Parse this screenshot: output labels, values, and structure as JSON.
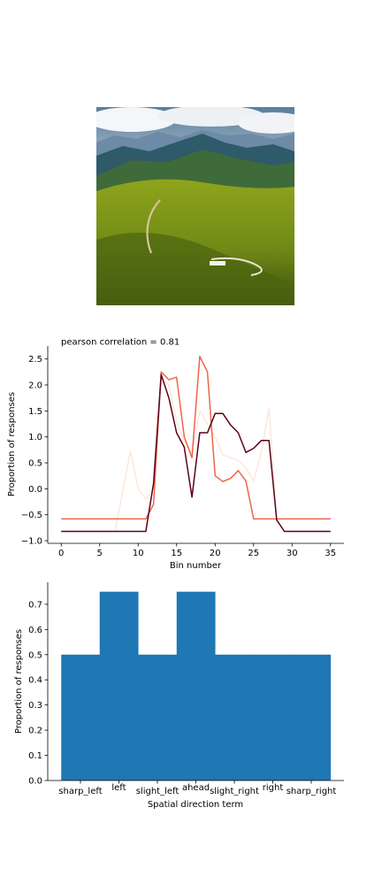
{
  "chart_data": [
    {
      "type": "line",
      "title": "pearson correlation = 0.81",
      "xlabel": "Bin number",
      "ylabel": "Proportion of responses",
      "xlim": [
        -1.75,
        36.75
      ],
      "ylim": [
        -1.05,
        2.75
      ],
      "xticks": [
        0,
        5,
        10,
        15,
        20,
        25,
        30,
        35
      ],
      "yticks": [
        -1.0,
        -0.5,
        0.0,
        0.5,
        1.0,
        1.5,
        2.0,
        2.5
      ],
      "xtick_labels": [
        "0",
        "5",
        "10",
        "15",
        "20",
        "25",
        "30",
        "35"
      ],
      "ytick_labels": [
        "−1.0",
        "−0.5",
        "0.0",
        "0.5",
        "1.0",
        "1.5",
        "2.0",
        "2.5"
      ],
      "grid": false,
      "x": [
        0,
        1,
        2,
        3,
        4,
        5,
        6,
        7,
        8,
        9,
        10,
        11,
        12,
        13,
        14,
        15,
        16,
        17,
        18,
        19,
        20,
        21,
        22,
        23,
        24,
        25,
        26,
        27,
        28,
        29,
        30,
        31,
        32,
        33,
        34,
        35
      ],
      "series": [
        {
          "color": "#fde7dc",
          "values": [
            -0.82,
            -0.82,
            -0.82,
            -0.82,
            -0.82,
            -0.82,
            -0.82,
            -0.82,
            -0.05,
            0.72,
            0.0,
            -0.2,
            0.0,
            2.1,
            2.0,
            1.3,
            0.9,
            0.7,
            1.5,
            1.25,
            1.0,
            0.65,
            0.6,
            0.55,
            0.4,
            0.15,
            0.7,
            1.55,
            -0.6,
            -0.82,
            -0.82,
            -0.82,
            -0.82,
            -0.82,
            -0.82,
            -0.82
          ]
        },
        {
          "color": "#ee6548",
          "values": [
            -0.58,
            -0.58,
            -0.58,
            -0.58,
            -0.58,
            -0.58,
            -0.58,
            -0.58,
            -0.58,
            -0.58,
            -0.58,
            -0.58,
            -0.3,
            2.25,
            2.1,
            2.15,
            1.0,
            0.6,
            2.55,
            2.25,
            0.25,
            0.14,
            0.2,
            0.35,
            0.15,
            -0.58,
            -0.58,
            -0.58,
            -0.58,
            -0.58,
            -0.58,
            -0.58,
            -0.58,
            -0.58,
            -0.58,
            -0.58
          ]
        },
        {
          "color": "#5c0217",
          "values": [
            -0.82,
            -0.82,
            -0.82,
            -0.82,
            -0.82,
            -0.82,
            -0.82,
            -0.82,
            -0.82,
            -0.82,
            -0.82,
            -0.82,
            0.1,
            2.2,
            1.75,
            1.08,
            0.8,
            -0.16,
            1.08,
            1.08,
            1.45,
            1.45,
            1.23,
            1.08,
            0.7,
            0.78,
            0.93,
            0.93,
            -0.6,
            -0.82,
            -0.82,
            -0.82,
            -0.82,
            -0.82,
            -0.82,
            -0.82
          ]
        }
      ]
    },
    {
      "type": "bar",
      "xlabel": "Spatial direction term",
      "ylabel": "Proportion of responses",
      "categories": [
        "sharp_left",
        "left",
        "slight_left",
        "ahead",
        "slight_right",
        "right",
        "sharp_right"
      ],
      "values": [
        0.5,
        0.75,
        0.5,
        0.75,
        0.5,
        0.5,
        0.5
      ],
      "ylim": [
        0,
        0.7875
      ],
      "yticks": [
        0.0,
        0.1,
        0.2,
        0.3,
        0.4,
        0.5,
        0.6,
        0.7
      ],
      "ytick_labels": [
        "0.0",
        "0.1",
        "0.2",
        "0.3",
        "0.4",
        "0.5",
        "0.6",
        "0.7"
      ],
      "color": "#1f77b4",
      "grid": false
    }
  ]
}
